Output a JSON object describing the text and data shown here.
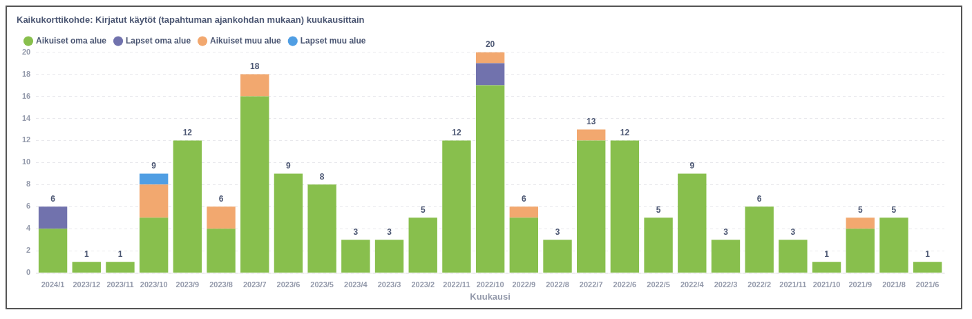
{
  "chart_data": {
    "type": "bar",
    "title": "Kaikukorttikohde: Kirjatut käytöt (tapahtuman ajankohdan mukaan) kuukausittain",
    "xlabel": "Kuukausi",
    "stacked": true,
    "legend": "top left",
    "grid": "y",
    "categories": [
      "2024/1",
      "2023/12",
      "2023/11",
      "2023/10",
      "2023/9",
      "2023/8",
      "2023/7",
      "2023/6",
      "2023/5",
      "2023/4",
      "2023/3",
      "2023/2",
      "2022/11",
      "2022/10",
      "2022/9",
      "2022/8",
      "2022/7",
      "2022/6",
      "2022/5",
      "2022/4",
      "2022/3",
      "2022/2",
      "2021/11",
      "2021/10",
      "2021/9",
      "2021/8",
      "2021/6"
    ],
    "series": [
      {
        "name": "Aikuiset oma alue",
        "color": "#88bf4d",
        "values": [
          4,
          1,
          1,
          5,
          12,
          4,
          16,
          9,
          8,
          3,
          3,
          5,
          12,
          17,
          5,
          3,
          12,
          12,
          5,
          9,
          3,
          6,
          3,
          1,
          4,
          5,
          1
        ]
      },
      {
        "name": "Lapset oma alue",
        "color": "#7172ad",
        "values": [
          2,
          null,
          null,
          null,
          null,
          null,
          null,
          null,
          null,
          null,
          null,
          null,
          null,
          2,
          null,
          null,
          null,
          null,
          null,
          null,
          null,
          null,
          null,
          null,
          null,
          null,
          null
        ]
      },
      {
        "name": "Aikuiset muu alue",
        "color": "#f2a86f",
        "values": [
          null,
          null,
          null,
          3,
          null,
          2,
          2,
          null,
          null,
          null,
          null,
          null,
          null,
          1,
          1,
          null,
          1,
          null,
          null,
          null,
          null,
          null,
          null,
          null,
          1,
          null,
          null
        ]
      },
      {
        "name": "Lapset muu alue",
        "color": "#509ee3",
        "values": [
          null,
          null,
          null,
          1,
          null,
          null,
          null,
          null,
          null,
          null,
          null,
          null,
          null,
          null,
          null,
          null,
          null,
          null,
          null,
          null,
          null,
          null,
          null,
          null,
          null,
          null,
          null
        ]
      }
    ],
    "totals": [
      "6",
      "1",
      "1",
      "9",
      "12",
      "6",
      "18",
      "9",
      "8",
      "3",
      "3",
      "5",
      "12",
      "20",
      "6",
      "3",
      "13",
      "12",
      "5",
      "9",
      "3",
      "6",
      "3",
      "1",
      "5",
      "5",
      "1"
    ],
    "ylim": [
      0,
      20
    ],
    "yticks": [
      0,
      2,
      4,
      6,
      8,
      10,
      12,
      14,
      16,
      18,
      20
    ]
  }
}
